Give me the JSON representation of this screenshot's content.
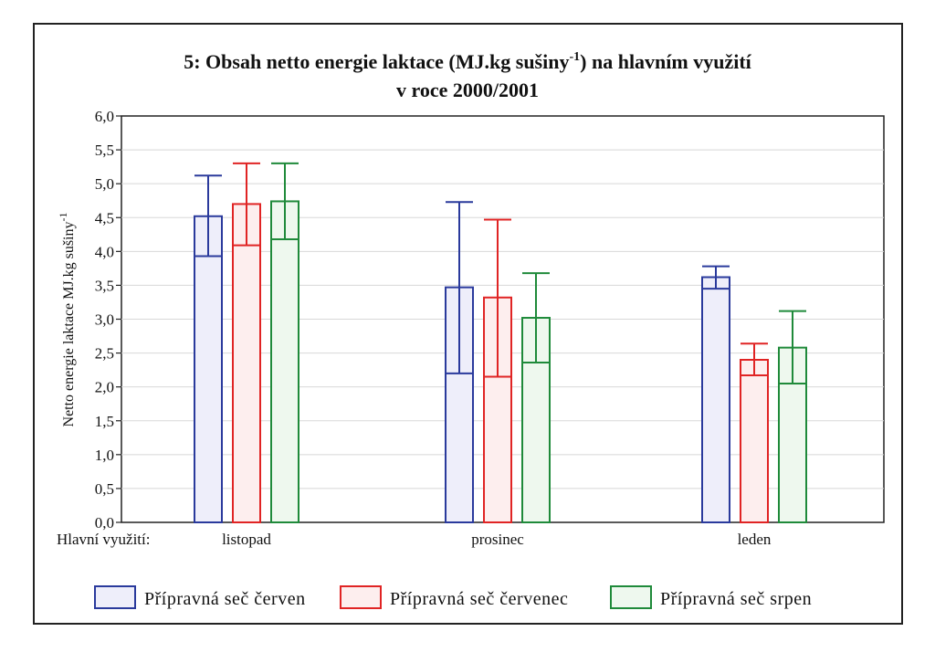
{
  "chart_data": {
    "type": "bar",
    "title_line1": "5: Obsah netto energie laktace (MJ.kg sušiny",
    "title_sup": "-1",
    "title_line1_end": ") na hlavním využití",
    "title_line2": "v roce 2000/2001",
    "ylabel": "Netto energie laktace MJ.kg sušiny",
    "ylabel_sup": "-1",
    "xlabel_prefix": "Hlavní využití:",
    "ylim": [
      0,
      6
    ],
    "yticks": [
      "0,0",
      "0,5",
      "1,0",
      "1,5",
      "2,0",
      "2,5",
      "3,0",
      "3,5",
      "4,0",
      "4,5",
      "5,0",
      "5,5",
      "6,0"
    ],
    "categories": [
      "listopad",
      "prosinec",
      "leden"
    ],
    "series": [
      {
        "name": "Přípravná seč červen",
        "color": "#2a3a9c",
        "fill": "#eeeefa",
        "values": [
          4.52,
          3.47,
          3.62
        ],
        "err_low": [
          3.93,
          2.2,
          3.45
        ],
        "err_high": [
          5.12,
          4.73,
          3.78
        ]
      },
      {
        "name": "Přípravná seč červenec",
        "color": "#e02424",
        "fill": "#fdeeee",
        "values": [
          4.7,
          3.32,
          2.4
        ],
        "err_low": [
          4.09,
          2.15,
          2.17
        ],
        "err_high": [
          5.3,
          4.47,
          2.64
        ]
      },
      {
        "name": "Přípravná seč srpen",
        "color": "#1f8a3a",
        "fill": "#eef8ee",
        "values": [
          4.74,
          3.02,
          2.58
        ],
        "err_low": [
          4.18,
          2.36,
          2.05
        ],
        "err_high": [
          5.3,
          3.68,
          3.12
        ]
      }
    ]
  }
}
